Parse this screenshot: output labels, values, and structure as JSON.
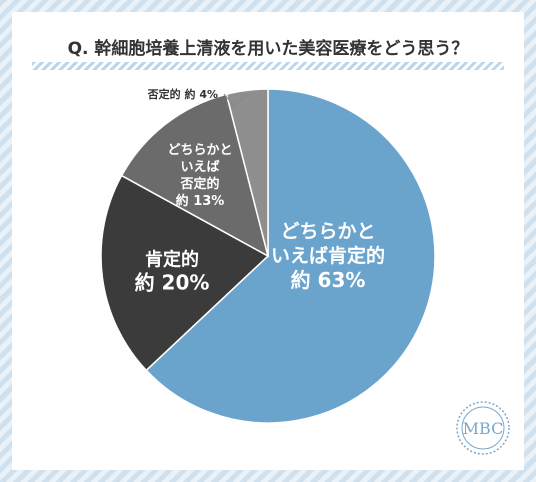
{
  "title": "Q. 幹細胞培養上清液を用いた美容医療をどう思う？",
  "logo": {
    "text": "MBC",
    "color": "#7aa7cc"
  },
  "colors": {
    "background_stripe": "#cfe0ee",
    "card": "#ffffff"
  },
  "chart_data": {
    "type": "pie",
    "title": "Q. 幹細胞培養上清液を用いた美容医療をどう思う？",
    "start": "12 o'clock",
    "direction": "clockwise",
    "slices": [
      {
        "label_lines": [
          "どちらかと",
          "いえば肯定的"
        ],
        "value_text": "約 63%",
        "value": 63,
        "color": "#6aa3cc",
        "label_placement": "inside"
      },
      {
        "label_lines": [
          "肯定的"
        ],
        "value_text": "約 20%",
        "value": 20,
        "color": "#3b3b3b",
        "label_placement": "inside"
      },
      {
        "label_lines": [
          "どちらかと",
          "いえば",
          "否定的"
        ],
        "value_text": "約 13%",
        "value": 13,
        "color": "#6b6b6b",
        "label_placement": "inside"
      },
      {
        "label_lines": [
          "否定的"
        ],
        "value_text": "約 4%",
        "value": 4,
        "color": "#8e8e8e",
        "label_placement": "outside"
      }
    ]
  }
}
